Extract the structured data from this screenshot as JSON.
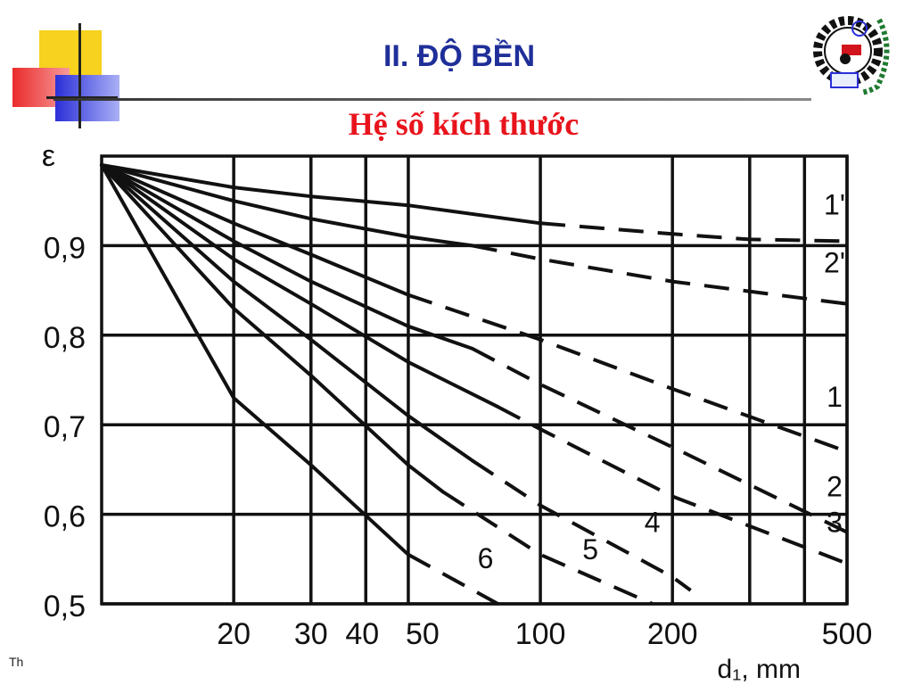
{
  "slide": {
    "title": "II. ĐỘ BỀN",
    "subtitle": "Hệ số kích thước",
    "footer": "Th"
  },
  "colors": {
    "title": "#1f2f99",
    "subtitle": "#e8141c",
    "deco_yellow": "#f7d21e",
    "deco_red": "#ea2b2b",
    "deco_blue": "#2b2fd8",
    "logo_green": "#1f7a2f"
  },
  "logo": {
    "icon": "gear-wheat-emblem-icon"
  },
  "chart_data": {
    "type": "line",
    "title": "",
    "xlabel": "d₁, mm",
    "ylabel": "ε",
    "x_scale": "log",
    "xlim": [
      10,
      500
    ],
    "ylim": [
      0.5,
      1.0
    ],
    "x_ticks": [
      20,
      30,
      40,
      50,
      100,
      200,
      500
    ],
    "x_tick_labels": [
      "20",
      "30",
      "40",
      "50",
      "100",
      "200",
      "500"
    ],
    "y_ticks": [
      0.5,
      0.6,
      0.7,
      0.8,
      0.9
    ],
    "y_tick_labels": [
      "0,5",
      "0,6",
      "0,7",
      "0,8",
      "0,9"
    ],
    "y_top_label": "ε",
    "grid": true,
    "series": [
      {
        "name": "1'",
        "solid": [
          [
            10,
            0.99
          ],
          [
            20,
            0.965
          ],
          [
            30,
            0.955
          ],
          [
            50,
            0.945
          ],
          [
            100,
            0.925
          ]
        ],
        "dashed": [
          [
            100,
            0.925
          ],
          [
            200,
            0.913
          ],
          [
            300,
            0.907
          ],
          [
            500,
            0.905
          ]
        ]
      },
      {
        "name": "2'",
        "solid": [
          [
            10,
            0.99
          ],
          [
            20,
            0.95
          ],
          [
            30,
            0.93
          ],
          [
            50,
            0.91
          ],
          [
            70,
            0.9
          ]
        ],
        "dashed": [
          [
            70,
            0.9
          ],
          [
            100,
            0.885
          ],
          [
            200,
            0.86
          ],
          [
            500,
            0.835
          ]
        ]
      },
      {
        "name": "1",
        "solid": [
          [
            10,
            0.99
          ],
          [
            20,
            0.925
          ],
          [
            30,
            0.89
          ],
          [
            50,
            0.845
          ]
        ],
        "dashed": [
          [
            50,
            0.845
          ],
          [
            100,
            0.795
          ],
          [
            200,
            0.74
          ],
          [
            500,
            0.67
          ]
        ]
      },
      {
        "name": "2",
        "solid": [
          [
            10,
            0.99
          ],
          [
            20,
            0.905
          ],
          [
            30,
            0.86
          ],
          [
            50,
            0.81
          ],
          [
            70,
            0.785
          ]
        ],
        "dashed": [
          [
            70,
            0.785
          ],
          [
            100,
            0.745
          ],
          [
            200,
            0.675
          ],
          [
            500,
            0.58
          ]
        ]
      },
      {
        "name": "3",
        "solid": [
          [
            10,
            0.99
          ],
          [
            20,
            0.885
          ],
          [
            30,
            0.835
          ],
          [
            50,
            0.77
          ],
          [
            80,
            0.72
          ]
        ],
        "dashed": [
          [
            80,
            0.72
          ],
          [
            100,
            0.695
          ],
          [
            200,
            0.62
          ],
          [
            500,
            0.545
          ]
        ]
      },
      {
        "name": "4",
        "solid": [
          [
            10,
            0.99
          ],
          [
            20,
            0.86
          ],
          [
            30,
            0.795
          ],
          [
            50,
            0.71
          ],
          [
            70,
            0.66
          ]
        ],
        "dashed": [
          [
            70,
            0.66
          ],
          [
            100,
            0.61
          ],
          [
            200,
            0.53
          ],
          [
            220,
            0.515
          ]
        ]
      },
      {
        "name": "5",
        "solid": [
          [
            10,
            0.99
          ],
          [
            20,
            0.83
          ],
          [
            30,
            0.755
          ],
          [
            50,
            0.655
          ],
          [
            60,
            0.625
          ]
        ],
        "dashed": [
          [
            60,
            0.625
          ],
          [
            100,
            0.555
          ],
          [
            180,
            0.5
          ]
        ]
      },
      {
        "name": "6",
        "solid": [
          [
            10,
            0.99
          ],
          [
            20,
            0.73
          ],
          [
            30,
            0.655
          ],
          [
            50,
            0.555
          ]
        ],
        "dashed": [
          [
            50,
            0.555
          ],
          [
            80,
            0.5
          ]
        ]
      }
    ],
    "curve_labels": [
      "1'",
      "2'",
      "1",
      "2",
      "3",
      "4",
      "5",
      "6"
    ]
  }
}
